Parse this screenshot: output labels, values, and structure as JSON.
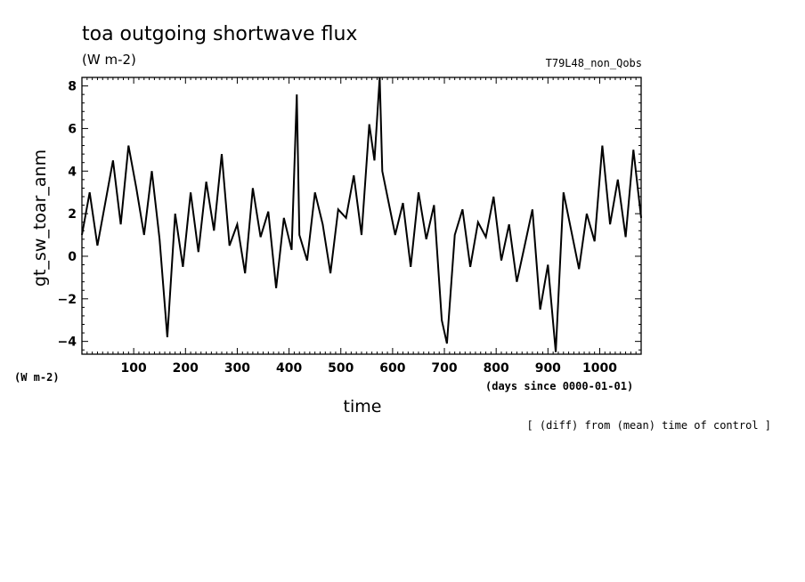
{
  "chart_data": {
    "type": "line",
    "title": "toa outgoing shortwave flux",
    "units": "(W m-2)",
    "run_label": "T79L48_non_Qobs",
    "ylabel": "gt_sw_toar_anm",
    "y_units": "(W m-2)",
    "xlabel": "time",
    "x_units": "(days since 0000-01-01)",
    "note": "[ (diff) from (mean) time of control ]",
    "xlim": [
      0,
      1080
    ],
    "ylim": [
      -4.6,
      8.4
    ],
    "xticks": [
      100,
      200,
      300,
      400,
      500,
      600,
      700,
      800,
      900,
      1000
    ],
    "yticks": [
      -4,
      -2,
      0,
      2,
      4,
      6,
      8
    ],
    "grid": false,
    "series": [
      {
        "color": "#000000",
        "x": [
          0,
          15,
          30,
          45,
          60,
          75,
          90,
          105,
          120,
          135,
          150,
          165,
          180,
          195,
          210,
          225,
          240,
          255,
          270,
          285,
          300,
          315,
          330,
          345,
          360,
          375,
          390,
          405,
          415,
          420,
          435,
          450,
          465,
          480,
          495,
          510,
          525,
          540,
          555,
          565,
          575,
          580,
          590,
          605,
          620,
          635,
          650,
          665,
          680,
          695,
          705,
          720,
          735,
          750,
          765,
          780,
          795,
          810,
          825,
          840,
          855,
          870,
          885,
          900,
          915,
          930,
          945,
          960,
          975,
          990,
          1005,
          1020,
          1035,
          1050,
          1065,
          1080
        ],
        "values": [
          1.0,
          3.0,
          0.5,
          2.5,
          4.5,
          1.5,
          5.2,
          3.2,
          1.0,
          4.0,
          0.8,
          -3.8,
          2.0,
          -0.5,
          3.0,
          0.2,
          3.5,
          1.2,
          4.8,
          0.5,
          1.5,
          -0.8,
          3.2,
          0.9,
          2.1,
          -1.5,
          1.8,
          0.3,
          7.6,
          1.0,
          -0.2,
          3.0,
          1.5,
          -0.8,
          2.2,
          1.8,
          3.8,
          1.0,
          6.2,
          4.5,
          8.4,
          4.0,
          2.8,
          1.0,
          2.5,
          -0.5,
          3.0,
          0.8,
          2.4,
          -3.0,
          -4.1,
          1.0,
          2.2,
          -0.5,
          1.6,
          0.9,
          2.8,
          -0.2,
          1.5,
          -1.2,
          0.5,
          2.2,
          -2.5,
          -0.4,
          -4.5,
          3.0,
          1.2,
          -0.6,
          2.0,
          0.7,
          5.2,
          1.5,
          3.6,
          0.9,
          5.0,
          1.8
        ]
      }
    ]
  }
}
